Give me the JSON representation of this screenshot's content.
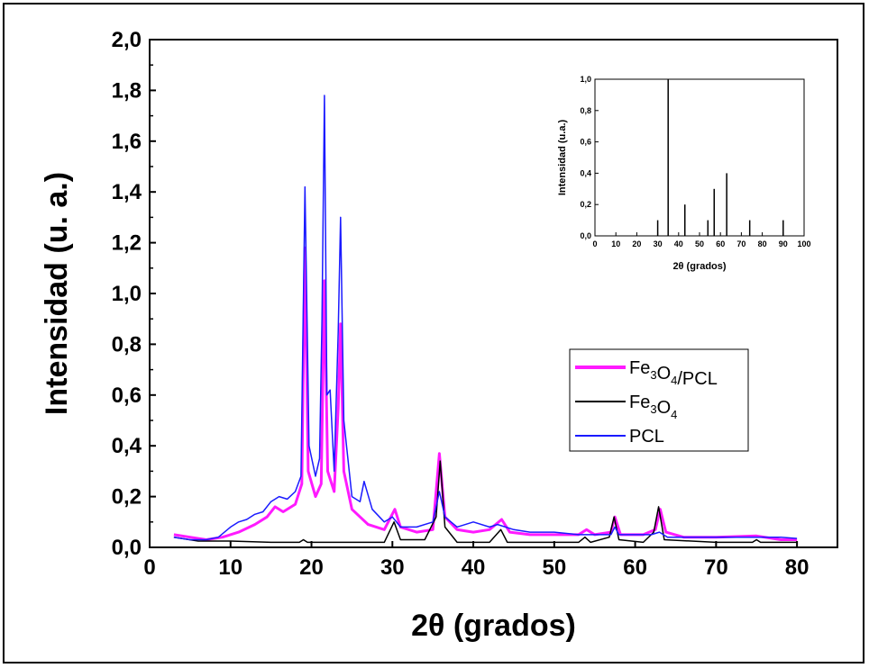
{
  "chart_data": [
    {
      "type": "line",
      "xlabel": "2θ (grados)",
      "ylabel": "Intensidad (u. a.)",
      "xlim": [
        0,
        85
      ],
      "ylim": [
        0,
        2.0
      ],
      "x_ticks": [
        0,
        10,
        20,
        30,
        40,
        50,
        60,
        70,
        80
      ],
      "y_ticks": [
        "0,0",
        "0,2",
        "0,4",
        "0,6",
        "0,8",
        "1,0",
        "1,2",
        "1,4",
        "1,6",
        "1,8",
        "2,0"
      ],
      "legend_position": "center-right",
      "series": [
        {
          "name": "Fe3O4/PCL",
          "color": "#ff1aff",
          "width": 3,
          "points": [
            [
              3,
              0.05
            ],
            [
              5,
              0.04
            ],
            [
              7,
              0.03
            ],
            [
              9,
              0.04
            ],
            [
              11,
              0.06
            ],
            [
              13,
              0.09
            ],
            [
              14.5,
              0.12
            ],
            [
              15.5,
              0.16
            ],
            [
              16.5,
              0.14
            ],
            [
              18,
              0.17
            ],
            [
              18.8,
              0.25
            ],
            [
              19.2,
              1.18
            ],
            [
              19.6,
              0.3
            ],
            [
              20.5,
              0.2
            ],
            [
              21.2,
              0.25
            ],
            [
              21.6,
              1.05
            ],
            [
              22,
              0.3
            ],
            [
              22.8,
              0.22
            ],
            [
              23.3,
              0.55
            ],
            [
              23.6,
              0.88
            ],
            [
              24,
              0.3
            ],
            [
              25,
              0.15
            ],
            [
              26,
              0.12
            ],
            [
              27,
              0.09
            ],
            [
              29,
              0.07
            ],
            [
              30.3,
              0.15
            ],
            [
              31,
              0.08
            ],
            [
              33,
              0.06
            ],
            [
              35,
              0.07
            ],
            [
              35.8,
              0.37
            ],
            [
              36.5,
              0.12
            ],
            [
              38,
              0.07
            ],
            [
              40,
              0.06
            ],
            [
              42,
              0.07
            ],
            [
              43.5,
              0.11
            ],
            [
              44.5,
              0.06
            ],
            [
              47,
              0.05
            ],
            [
              50,
              0.05
            ],
            [
              53,
              0.05
            ],
            [
              54,
              0.07
            ],
            [
              55,
              0.05
            ],
            [
              57,
              0.06
            ],
            [
              57.5,
              0.12
            ],
            [
              58.2,
              0.05
            ],
            [
              61,
              0.05
            ],
            [
              62.5,
              0.07
            ],
            [
              63.1,
              0.15
            ],
            [
              63.8,
              0.06
            ],
            [
              66,
              0.04
            ],
            [
              70,
              0.04
            ],
            [
              75,
              0.045
            ],
            [
              78,
              0.03
            ],
            [
              80,
              0.03
            ]
          ]
        },
        {
          "name": "Fe3O4",
          "color": "#000000",
          "width": 1.5,
          "points": [
            [
              3,
              0.04
            ],
            [
              6,
              0.025
            ],
            [
              10,
              0.025
            ],
            [
              15,
              0.02
            ],
            [
              18.5,
              0.02
            ],
            [
              19,
              0.03
            ],
            [
              19.5,
              0.02
            ],
            [
              25,
              0.02
            ],
            [
              29,
              0.02
            ],
            [
              30.2,
              0.1
            ],
            [
              31,
              0.03
            ],
            [
              34,
              0.03
            ],
            [
              35.4,
              0.12
            ],
            [
              35.9,
              0.34
            ],
            [
              36.5,
              0.08
            ],
            [
              38,
              0.02
            ],
            [
              42,
              0.02
            ],
            [
              43.4,
              0.07
            ],
            [
              44.2,
              0.02
            ],
            [
              50,
              0.02
            ],
            [
              53,
              0.02
            ],
            [
              53.8,
              0.04
            ],
            [
              54.5,
              0.02
            ],
            [
              56.8,
              0.04
            ],
            [
              57.4,
              0.12
            ],
            [
              58,
              0.03
            ],
            [
              61,
              0.02
            ],
            [
              62.3,
              0.06
            ],
            [
              62.9,
              0.16
            ],
            [
              63.6,
              0.03
            ],
            [
              70,
              0.02
            ],
            [
              74.5,
              0.02
            ],
            [
              75,
              0.03
            ],
            [
              75.5,
              0.02
            ],
            [
              80,
              0.02
            ]
          ]
        },
        {
          "name": "PCL",
          "color": "#1a1aff",
          "width": 1.5,
          "points": [
            [
              3,
              0.04
            ],
            [
              5,
              0.03
            ],
            [
              7,
              0.03
            ],
            [
              8.5,
              0.04
            ],
            [
              10,
              0.08
            ],
            [
              11,
              0.1
            ],
            [
              12,
              0.11
            ],
            [
              13,
              0.13
            ],
            [
              14,
              0.14
            ],
            [
              15,
              0.18
            ],
            [
              16,
              0.2
            ],
            [
              17,
              0.19
            ],
            [
              18,
              0.22
            ],
            [
              18.7,
              0.28
            ],
            [
              19.2,
              1.42
            ],
            [
              19.7,
              0.4
            ],
            [
              20.5,
              0.28
            ],
            [
              21,
              0.35
            ],
            [
              21.3,
              0.9
            ],
            [
              21.6,
              1.78
            ],
            [
              21.9,
              0.6
            ],
            [
              22.3,
              0.62
            ],
            [
              22.8,
              0.3
            ],
            [
              23.3,
              0.85
            ],
            [
              23.6,
              1.3
            ],
            [
              24,
              0.5
            ],
            [
              25,
              0.2
            ],
            [
              26,
              0.18
            ],
            [
              26.5,
              0.26
            ],
            [
              27.5,
              0.15
            ],
            [
              29,
              0.1
            ],
            [
              30,
              0.12
            ],
            [
              31,
              0.08
            ],
            [
              33,
              0.08
            ],
            [
              35,
              0.1
            ],
            [
              35.8,
              0.22
            ],
            [
              36.5,
              0.12
            ],
            [
              38,
              0.08
            ],
            [
              40,
              0.1
            ],
            [
              42,
              0.08
            ],
            [
              43,
              0.09
            ],
            [
              45,
              0.07
            ],
            [
              47,
              0.06
            ],
            [
              50,
              0.06
            ],
            [
              53,
              0.05
            ],
            [
              55,
              0.05
            ],
            [
              57,
              0.05
            ],
            [
              57.5,
              0.08
            ],
            [
              58,
              0.05
            ],
            [
              60,
              0.05
            ],
            [
              62,
              0.05
            ],
            [
              63,
              0.06
            ],
            [
              64,
              0.04
            ],
            [
              70,
              0.04
            ],
            [
              75,
              0.04
            ],
            [
              78,
              0.04
            ],
            [
              80,
              0.035
            ]
          ]
        }
      ]
    },
    {
      "type": "bar",
      "xlabel": "2θ (grados)",
      "ylabel": "Intensidad (u.a.)",
      "xlim": [
        0,
        100
      ],
      "ylim": [
        0,
        1.0
      ],
      "x_ticks": [
        0,
        10,
        20,
        30,
        40,
        50,
        60,
        70,
        80,
        90,
        100
      ],
      "y_ticks": [
        "0,0",
        "0,2",
        "0,4",
        "0,6",
        "0,8",
        "1,0"
      ],
      "x": [
        30,
        35,
        43,
        54,
        57,
        63,
        74,
        90
      ],
      "values": [
        0.1,
        1.0,
        0.2,
        0.1,
        0.3,
        0.4,
        0.1,
        0.1
      ]
    }
  ],
  "legend": [
    {
      "prefix": "Fe",
      "sub1": "3",
      "mid": "O",
      "sub2": "4",
      "suffix": "/PCL",
      "color": "#ff1aff"
    },
    {
      "prefix": "Fe",
      "sub1": "3",
      "mid": "O",
      "sub2": "4",
      "suffix": "",
      "color": "#000000"
    },
    {
      "prefix": "PCL",
      "sub1": "",
      "mid": "",
      "sub2": "",
      "suffix": "",
      "color": "#1a1aff"
    }
  ]
}
